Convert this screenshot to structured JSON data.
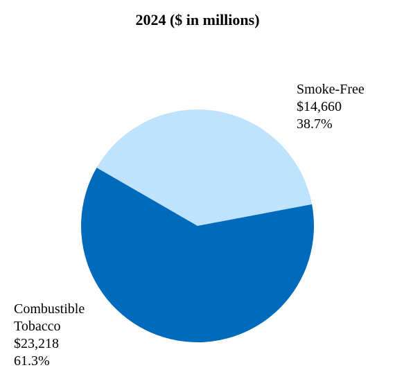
{
  "chart_data": {
    "type": "pie",
    "title": "2024 ($ in millions)",
    "slices": [
      {
        "label_lines": [
          "Smoke-Free"
        ],
        "value_label": "$14,660",
        "value": 14660,
        "percent_label": "38.7%",
        "percent": 38.7,
        "color": "#bfe3fd"
      },
      {
        "label_lines": [
          "Combustible",
          "Tobacco"
        ],
        "value_label": "$23,218",
        "value": 23218,
        "percent_label": "61.3%",
        "percent": 61.3,
        "color": "#006bbd"
      }
    ],
    "legend": "none"
  }
}
